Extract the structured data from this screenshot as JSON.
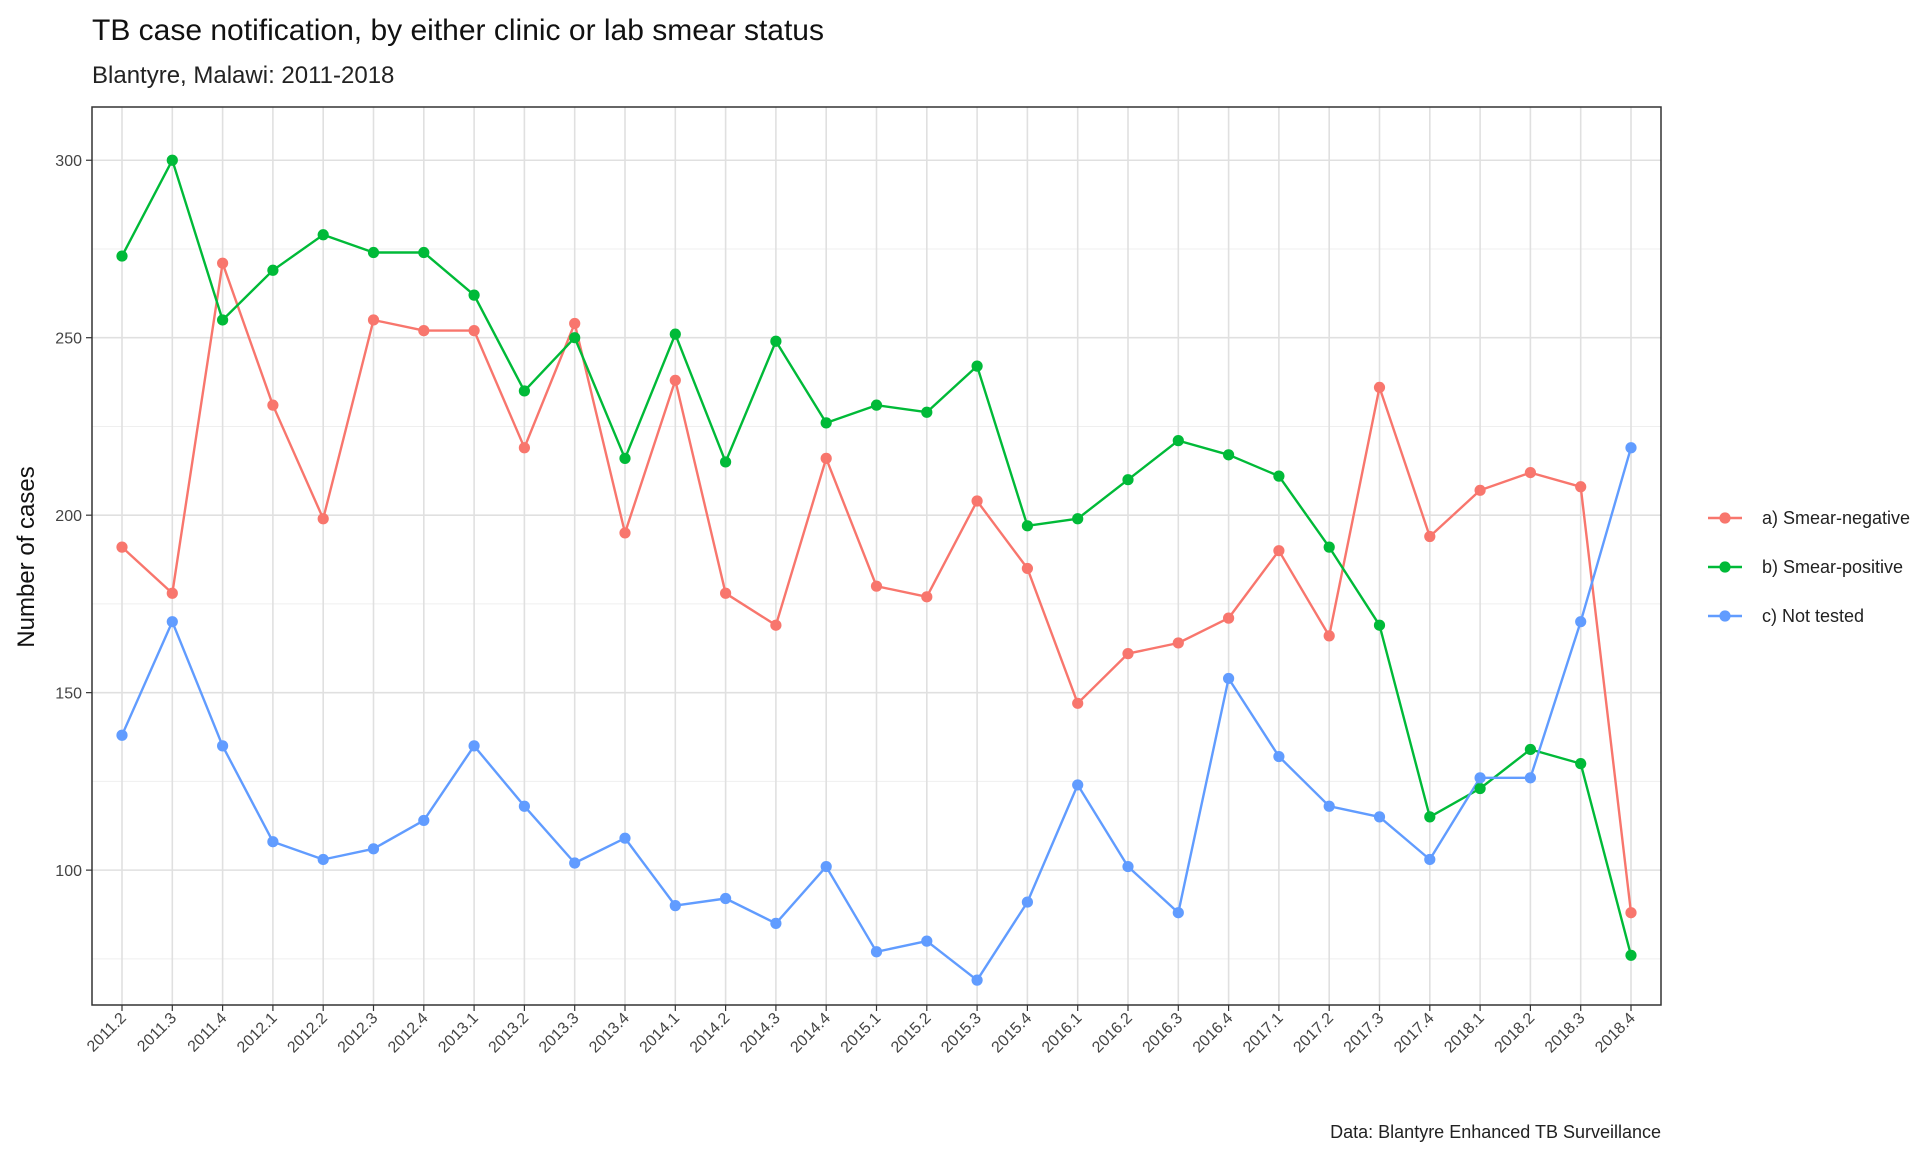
{
  "chart_data": {
    "type": "line",
    "title": "TB case notification, by either clinic or lab smear status",
    "subtitle": "Blantyre, Malawi: 2011-2018",
    "caption": "Data: Blantyre Enhanced TB Surveillance",
    "xlabel": "",
    "ylabel": "Number of cases",
    "ylim": [
      62,
      315
    ],
    "yticks": [
      100,
      150,
      200,
      250,
      300
    ],
    "grid": true,
    "legend_position": "right",
    "categories": [
      "2011.2",
      "2011.3",
      "2011.4",
      "2012.1",
      "2012.2",
      "2012.3",
      "2012.4",
      "2013.1",
      "2013.2",
      "2013.3",
      "2013.4",
      "2014.1",
      "2014.2",
      "2014.3",
      "2014.4",
      "2015.1",
      "2015.2",
      "2015.3",
      "2015.4",
      "2016.1",
      "2016.2",
      "2016.3",
      "2016.4",
      "2017.1",
      "2017.2",
      "2017.3",
      "2017.4",
      "2018.1",
      "2018.2",
      "2018.3",
      "2018.4"
    ],
    "series": [
      {
        "name": "a) Smear-negative",
        "color": "#F8766D",
        "values": [
          191,
          178,
          271,
          231,
          199,
          255,
          252,
          252,
          219,
          254,
          195,
          238,
          178,
          169,
          216,
          180,
          177,
          204,
          185,
          147,
          161,
          164,
          171,
          190,
          166,
          236,
          194,
          207,
          212,
          208,
          88
        ]
      },
      {
        "name": "b) Smear-positive",
        "color": "#00BA38",
        "values": [
          273,
          300,
          255,
          269,
          279,
          274,
          274,
          262,
          235,
          250,
          216,
          251,
          215,
          249,
          226,
          231,
          229,
          242,
          197,
          199,
          210,
          221,
          217,
          211,
          191,
          169,
          115,
          123,
          134,
          130,
          76
        ]
      },
      {
        "name": "c) Not tested",
        "color": "#619CFF",
        "values": [
          138,
          170,
          135,
          108,
          103,
          106,
          114,
          135,
          118,
          102,
          109,
          90,
          92,
          85,
          101,
          77,
          80,
          69,
          91,
          124,
          101,
          88,
          154,
          132,
          118,
          115,
          103,
          126,
          126,
          170,
          219
        ]
      }
    ]
  }
}
